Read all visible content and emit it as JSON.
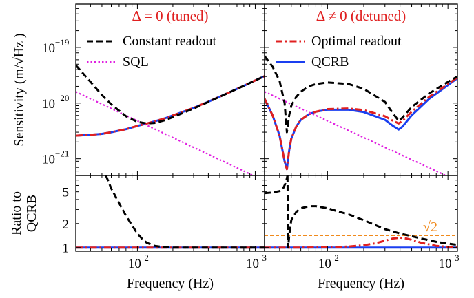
{
  "chart_data": [
    {
      "id": "top-left",
      "type": "line",
      "title": "Δ = 0 (tuned)",
      "ylabel": "Sensitivity (m/√Hz )",
      "x_scale": "log",
      "y_scale": "log",
      "xlim": [
        30,
        1200
      ],
      "ylim": [
        5e-22,
        6e-19
      ],
      "y_ticks": [
        1e-21,
        1e-20,
        1e-19
      ],
      "y_tick_labels": [
        "10",
        "10",
        "10"
      ],
      "y_tick_exponents": [
        "−21",
        "−20",
        "−19"
      ],
      "legend_position": "top",
      "series": [
        {
          "name": "Constant readout",
          "color": "#000000",
          "dash": "dashed",
          "x": [
            30,
            40,
            50,
            60,
            80,
            100,
            120,
            140,
            170,
            200,
            300,
            400,
            600,
            800,
            1000,
            1200
          ],
          "y": [
            4.8e-20,
            2.4e-20,
            1.4e-20,
            9.5e-21,
            5.8e-21,
            4.6e-21,
            4.3e-21,
            4.4e-21,
            4.9e-21,
            5.6e-21,
            8e-21,
            1.05e-20,
            1.55e-20,
            2.05e-20,
            2.55e-20,
            3.05e-20
          ]
        },
        {
          "name": "SQL",
          "color": "#e020e0",
          "dash": "dotted",
          "x": [
            30,
            1200
          ],
          "y": [
            1.6e-20,
            4e-22
          ]
        },
        {
          "name": "Optimal readout (tuned)",
          "color": "#e02020",
          "dash": "dashdot",
          "x": [
            30,
            40,
            50,
            60,
            80,
            100,
            120,
            140,
            170,
            200,
            300,
            400,
            600,
            800,
            1000,
            1200
          ],
          "y": [
            2.6e-21,
            2.7e-21,
            2.8e-21,
            3e-21,
            3.4e-21,
            3.9e-21,
            4.3e-21,
            4.7e-21,
            5.3e-21,
            6e-21,
            8.2e-21,
            1.06e-20,
            1.55e-20,
            2.05e-20,
            2.55e-20,
            3.05e-20
          ]
        },
        {
          "name": "QCRB (tuned)",
          "color": "#1a3ff0",
          "dash": "solid",
          "x": [
            30,
            40,
            50,
            60,
            80,
            100,
            120,
            140,
            170,
            200,
            300,
            400,
            600,
            800,
            1000,
            1200
          ],
          "y": [
            2.6e-21,
            2.7e-21,
            2.8e-21,
            3e-21,
            3.4e-21,
            3.9e-21,
            4.3e-21,
            4.7e-21,
            5.3e-21,
            6e-21,
            8.2e-21,
            1.06e-20,
            1.55e-20,
            2.05e-20,
            2.55e-20,
            3.05e-20
          ]
        }
      ],
      "legend": [
        "Constant readout",
        "SQL"
      ]
    },
    {
      "id": "top-right",
      "type": "line",
      "title": "Δ ≠ 0 (detuned)",
      "x_scale": "log",
      "y_scale": "log",
      "xlim": [
        30,
        1200
      ],
      "ylim": [
        5e-22,
        6e-19
      ],
      "legend_position": "top",
      "series": [
        {
          "name": "Constant readout (detuned)",
          "color": "#000000",
          "dash": "dashed",
          "x": [
            30,
            35,
            40,
            44,
            46,
            48,
            50,
            55,
            60,
            70,
            80,
            100,
            150,
            200,
            300,
            350,
            390,
            420,
            500,
            700,
            1000,
            1200
          ],
          "y": [
            7e-20,
            4.5e-20,
            2.5e-20,
            1e-20,
            3e-21,
            6e-21,
            9e-21,
            1.3e-20,
            1.6e-20,
            2e-20,
            2.2e-20,
            2.35e-20,
            2.2e-20,
            1.8e-20,
            1.05e-20,
            6.5e-21,
            4.8e-21,
            5.5e-21,
            8.5e-21,
            1.5e-20,
            2.4e-20,
            3e-20
          ]
        },
        {
          "name": "SQL (detuned)",
          "color": "#e020e0",
          "dash": "dotted",
          "x": [
            30,
            1200
          ],
          "y": [
            1.6e-20,
            4e-22
          ]
        },
        {
          "name": "Optimal readout",
          "color": "#e02020",
          "dash": "dashdot",
          "x": [
            30,
            35,
            40,
            44,
            46,
            48,
            50,
            55,
            60,
            70,
            80,
            100,
            150,
            200,
            300,
            350,
            390,
            420,
            500,
            700,
            1000,
            1200
          ],
          "y": [
            1.2e-20,
            6e-21,
            2.6e-21,
            9e-22,
            6.5e-22,
            1.4e-21,
            2.3e-21,
            3.8e-21,
            5e-21,
            6.3e-21,
            7e-21,
            7.8e-21,
            8e-21,
            7.5e-21,
            5.8e-21,
            4.8e-21,
            4.3e-21,
            4.8e-21,
            7e-21,
            1.3e-20,
            2.2e-20,
            2.9e-20
          ]
        },
        {
          "name": "QCRB",
          "color": "#1a3ff0",
          "dash": "solid",
          "x": [
            30,
            35,
            40,
            44,
            46,
            48,
            50,
            55,
            60,
            70,
            80,
            100,
            150,
            200,
            300,
            350,
            390,
            420,
            500,
            700,
            1000,
            1200
          ],
          "y": [
            1.2e-20,
            6e-21,
            2.6e-21,
            9e-22,
            6.5e-22,
            1.4e-21,
            2.3e-21,
            3.8e-21,
            5e-21,
            6.3e-21,
            7e-21,
            7.6e-21,
            7.6e-21,
            6.9e-21,
            5e-21,
            3.9e-21,
            3.35e-21,
            3.8e-21,
            6e-21,
            1.2e-20,
            2.1e-20,
            2.8e-20
          ]
        }
      ],
      "legend": [
        "Optimal readout",
        "QCRB"
      ]
    },
    {
      "id": "bottom-left",
      "type": "line",
      "ylabel": "Ratio to QCRB",
      "xlabel": "Frequency (Hz)",
      "x_scale": "log",
      "y_scale": "log",
      "xlim": [
        30,
        1200
      ],
      "ylim": [
        0.9,
        8
      ],
      "x_ticks": [
        100,
        1000
      ],
      "x_tick_labels": [
        "10",
        "10"
      ],
      "x_tick_exponents": [
        "2",
        "3"
      ],
      "y_ticks": [
        1,
        2,
        5
      ],
      "y_tick_labels": [
        "1",
        "2",
        "5"
      ],
      "series": [
        {
          "name": "Constant readout ratio (tuned)",
          "color": "#000000",
          "dash": "dashed",
          "x": [
            54,
            60,
            70,
            80,
            90,
            100,
            110,
            120,
            140,
            170,
            200,
            300,
            1200
          ],
          "y": [
            8,
            5.5,
            3.6,
            2.5,
            1.9,
            1.5,
            1.28,
            1.15,
            1.05,
            1.01,
            1.0,
            1.0,
            1.0
          ]
        },
        {
          "name": "QCRB ratio (tuned)",
          "color": "#1a3ff0",
          "dash": "solid",
          "x": [
            30,
            1200
          ],
          "y": [
            1,
            1
          ]
        },
        {
          "name": "Optimal readout ratio (tuned)",
          "color": "#e02020",
          "dash": "dashdot",
          "x": [
            30,
            1200
          ],
          "y": [
            1,
            1
          ]
        }
      ]
    },
    {
      "id": "bottom-right",
      "type": "line",
      "xlabel": "Frequency (Hz)",
      "x_scale": "log",
      "y_scale": "log",
      "xlim": [
        30,
        1200
      ],
      "ylim": [
        0.9,
        8
      ],
      "x_ticks": [
        100,
        1000
      ],
      "x_tick_labels": [
        "10",
        "10"
      ],
      "x_tick_exponents": [
        "2",
        "3"
      ],
      "reference_line": {
        "y": 1.4142,
        "label": "√2",
        "color": "#f08a1c"
      },
      "series": [
        {
          "name": "Constant readout ratio (detuned) a",
          "color": "#000000",
          "dash": "dashed",
          "x": [
            30,
            35,
            40,
            43,
            45,
            46.5
          ],
          "y": [
            4.8,
            4.9,
            5.1,
            5.6,
            6.5,
            8
          ]
        },
        {
          "name": "Constant readout ratio (detuned) b",
          "color": "#000000",
          "dash": "dashed",
          "x": [
            46.5,
            47,
            48.5,
            50,
            55,
            60,
            70,
            80,
            100,
            150,
            200,
            300,
            400,
            600,
            800,
            1200
          ],
          "y": [
            8,
            1,
            1.6,
            2.2,
            2.8,
            3.1,
            3.3,
            3.3,
            3.1,
            2.6,
            2.2,
            1.7,
            1.5,
            1.3,
            1.18,
            1.08
          ]
        },
        {
          "name": "QCRB ratio (detuned)",
          "color": "#1a3ff0",
          "dash": "solid",
          "x": [
            30,
            1200
          ],
          "y": [
            1,
            1
          ]
        },
        {
          "name": "Optimal readout ratio (detuned)",
          "color": "#e02020",
          "dash": "dashdot",
          "x": [
            30,
            60,
            100,
            150,
            200,
            250,
            300,
            350,
            400,
            450,
            500,
            600,
            800,
            1200
          ],
          "y": [
            1,
            1,
            1.01,
            1.03,
            1.07,
            1.13,
            1.22,
            1.3,
            1.33,
            1.3,
            1.25,
            1.15,
            1.05,
            1.0
          ]
        }
      ]
    }
  ]
}
